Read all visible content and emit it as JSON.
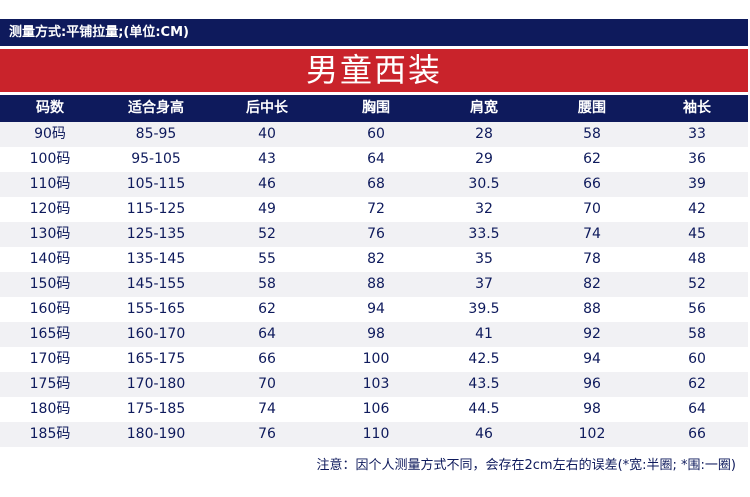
{
  "measure_note": "测量方式:平铺拉量;(单位:CM)",
  "title": "男童西装",
  "columns": [
    "码数",
    "适合身高",
    "后中长",
    "胸围",
    "肩宽",
    "腰围",
    "袖长"
  ],
  "rows": [
    [
      "90码",
      "85-95",
      "40",
      "60",
      "28",
      "58",
      "33"
    ],
    [
      "100码",
      "95-105",
      "43",
      "64",
      "29",
      "62",
      "36"
    ],
    [
      "110码",
      "105-115",
      "46",
      "68",
      "30.5",
      "66",
      "39"
    ],
    [
      "120码",
      "115-125",
      "49",
      "72",
      "32",
      "70",
      "42"
    ],
    [
      "130码",
      "125-135",
      "52",
      "76",
      "33.5",
      "74",
      "45"
    ],
    [
      "140码",
      "135-145",
      "55",
      "82",
      "35",
      "78",
      "48"
    ],
    [
      "150码",
      "145-155",
      "58",
      "88",
      "37",
      "82",
      "52"
    ],
    [
      "160码",
      "155-165",
      "62",
      "94",
      "39.5",
      "88",
      "56"
    ],
    [
      "165码",
      "160-170",
      "64",
      "98",
      "41",
      "92",
      "58"
    ],
    [
      "170码",
      "165-175",
      "66",
      "100",
      "42.5",
      "94",
      "60"
    ],
    [
      "175码",
      "170-180",
      "70",
      "103",
      "43.5",
      "96",
      "62"
    ],
    [
      "180码",
      "175-185",
      "74",
      "106",
      "44.5",
      "98",
      "64"
    ],
    [
      "185码",
      "180-190",
      "76",
      "110",
      "46",
      "102",
      "66"
    ]
  ],
  "footer_note": "注意：因个人测量方式不同，会存在2cm左右的误差(*宽:半圈; *围:一圈)",
  "colors": {
    "navy": "#0e1a5c",
    "red": "#c9232b",
    "stripe": "#f1f1f4"
  }
}
